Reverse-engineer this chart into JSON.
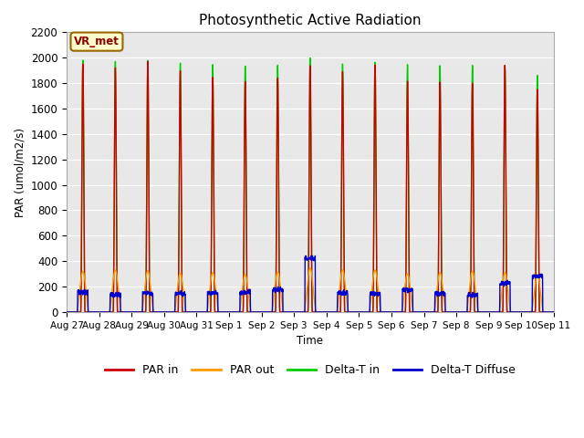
{
  "title": "Photosynthetic Active Radiation",
  "ylabel": "PAR (umol/m2/s)",
  "xlabel": "Time",
  "annotation": "VR_met",
  "ylim": [
    0,
    2200
  ],
  "background_color": "#d8d8d8",
  "plot_bg_color": "#e8e8e8",
  "line_colors": {
    "par_in": "#cc0000",
    "par_out": "#ff9900",
    "delta_t_in": "#00cc00",
    "delta_t_diffuse": "#0000cc"
  },
  "legend_labels": [
    "PAR in",
    "PAR out",
    "Delta-T in",
    "Delta-T Diffuse"
  ],
  "x_tick_labels": [
    "Aug 27",
    "Aug 28",
    "Aug 29",
    "Aug 30",
    "Aug 31",
    "Sep 1",
    "Sep 2",
    "Sep 3",
    "Sep 4",
    "Sep 5",
    "Sep 6",
    "Sep 7",
    "Sep 8",
    "Sep 9",
    "Sep 10",
    "Sep 11"
  ],
  "n_days": 15,
  "peak_par_in": [
    1950,
    1920,
    1970,
    1900,
    1850,
    1820,
    1850,
    1950,
    1900,
    1950,
    1820,
    1810,
    1800,
    1940,
    1750
  ],
  "peak_par_out": [
    320,
    330,
    325,
    305,
    310,
    295,
    315,
    345,
    330,
    330,
    300,
    310,
    320,
    310,
    295
  ],
  "peak_delta_t_in": [
    1980,
    1970,
    1980,
    1960,
    1950,
    1940,
    1950,
    2010,
    1960,
    1970,
    1950,
    1940,
    1940,
    1940,
    1860
  ],
  "peak_delta_t_diffuse": [
    130,
    110,
    125,
    120,
    125,
    130,
    150,
    395,
    125,
    120,
    150,
    120,
    110,
    200,
    255
  ]
}
